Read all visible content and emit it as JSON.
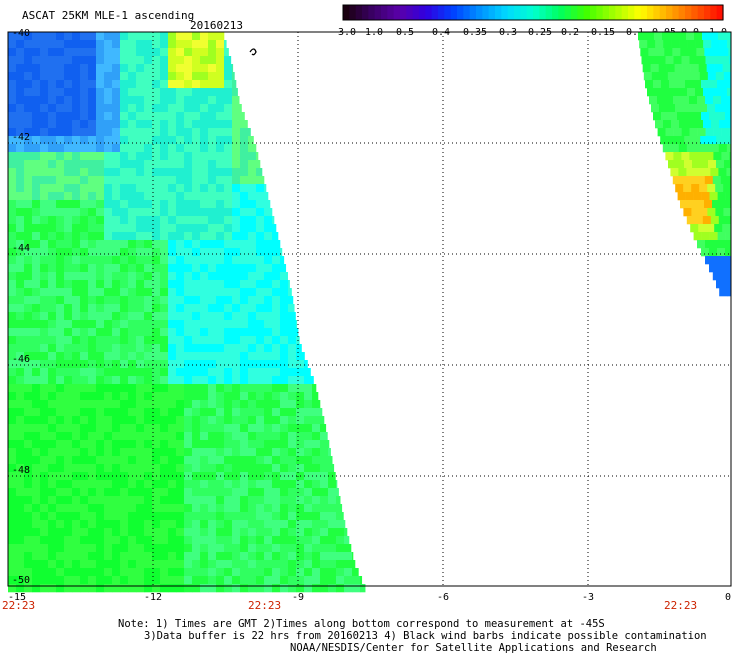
{
  "header": {
    "title": "ASCAT 25KM MLE-1 ascending",
    "date": "20160213"
  },
  "colorbar": {
    "labels": [
      "-3.0",
      "-1.0",
      "-0.5",
      "-0.4",
      "-0.35",
      "-0.3",
      "-0.25",
      "-0.2",
      "-0.15",
      "-0.1",
      "-0.05",
      "0.0",
      "1.0"
    ],
    "colors": [
      "#1a0010",
      "#3b0066",
      "#5a00aa",
      "#3000e0",
      "#0040ff",
      "#0090ff",
      "#00d8ff",
      "#00ffd0",
      "#00ff60",
      "#40ff00",
      "#a0ff00",
      "#ffff00",
      "#ffb000",
      "#ff6000",
      "#ff1000"
    ]
  },
  "axes": {
    "y_ticks": [
      "-40",
      "-42",
      "-44",
      "-46",
      "-48",
      "-50"
    ],
    "x_ticks": [
      "-15",
      "-12",
      "-9",
      "-6",
      "-3",
      "0"
    ],
    "time_labels": [
      "22:23",
      "22:23",
      "22:23"
    ],
    "lon_range": [
      -15,
      0
    ],
    "lat_range": [
      -50,
      -40
    ]
  },
  "footer": {
    "line1": "Note: 1) Times are GMT 2)Times along bottom correspond to measurement at -45S",
    "line2": "3)Data buffer is 22 hrs from 20160213 4) Black wind barbs indicate possible contamination",
    "line3": "NOAA/NESDIS/Center for Satellite Applications and Research"
  },
  "palette": {
    "blue": "#0040ff",
    "cyan": "#00ffff",
    "green": "#00ff00",
    "yellow_green": "#a0ff00",
    "orange": "#ffb000"
  }
}
